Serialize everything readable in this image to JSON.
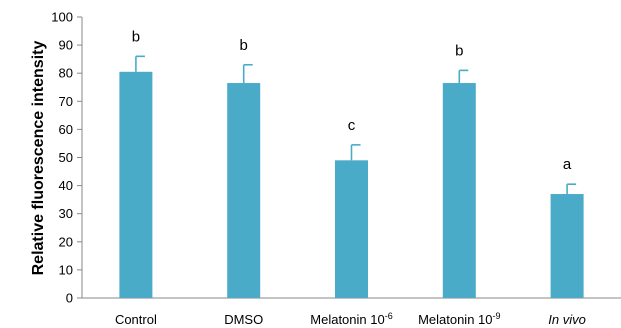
{
  "chart_data": {
    "type": "bar",
    "title": "",
    "ylabel": "Relative fluorescence intensity",
    "xlabel": "",
    "ylim": [
      0,
      100
    ],
    "yticks": [
      0,
      10,
      20,
      30,
      40,
      50,
      60,
      70,
      80,
      90,
      100
    ],
    "bar_color": "#4aabc8",
    "categories": [
      {
        "base": "Control",
        "sup": "",
        "italic": false
      },
      {
        "base": "DMSO",
        "sup": "",
        "italic": false
      },
      {
        "base": "Melatonin 10",
        "sup": "-6",
        "italic": false
      },
      {
        "base": "Melatonin 10",
        "sup": "-9",
        "italic": false
      },
      {
        "base": "In vivo",
        "sup": "",
        "italic": true
      }
    ],
    "values": [
      80.5,
      76.5,
      49,
      76.5,
      37
    ],
    "errors": [
      5.5,
      6.5,
      5.5,
      4.5,
      3.5
    ],
    "letters": [
      "b",
      "b",
      "c",
      "b",
      "a"
    ],
    "grid": false
  }
}
